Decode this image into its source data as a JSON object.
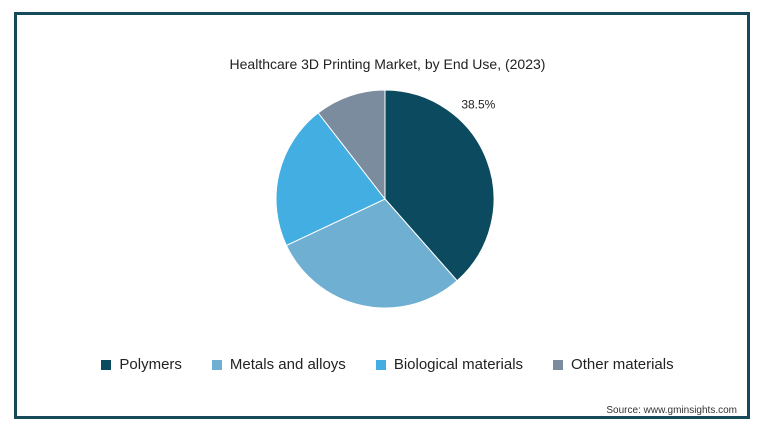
{
  "chart_data": {
    "type": "pie",
    "title": "Healthcare 3D Printing Market, by End Use, (2023)",
    "categories": [
      "Polymers",
      "Metals and alloys",
      "Biological materials",
      "Other materials"
    ],
    "values": [
      38.5,
      29.5,
      21.5,
      10.5
    ],
    "colors": [
      "#0b4a5f",
      "#6eafd2",
      "#42aee2",
      "#7a8c9e"
    ],
    "data_labels": [
      "38.5%",
      "",
      "",
      ""
    ],
    "legend_position": "bottom"
  },
  "source": "Source: www.gminsights.com"
}
